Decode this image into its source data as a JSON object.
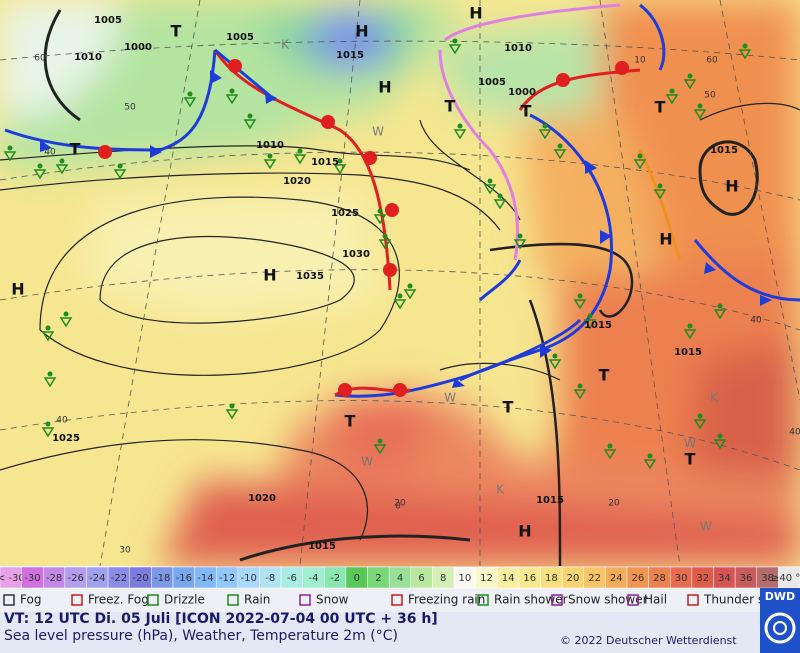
{
  "map": {
    "pressure_labels": [
      "1005",
      "1000",
      "1010",
      "1005",
      "1015",
      "1010",
      "1005",
      "1000",
      "1010",
      "1015",
      "1020",
      "1025",
      "1030",
      "1035",
      "1015",
      "1015",
      "1015",
      "1025",
      "1020",
      "1015",
      "1015"
    ],
    "systems": [
      "H",
      "H",
      "H",
      "H",
      "H",
      "H",
      "H",
      "H",
      "T",
      "T",
      "T",
      "T",
      "T",
      "T",
      "T",
      "T",
      "T"
    ],
    "temperature_labels": [
      "60",
      "50",
      "40",
      "60",
      "50",
      "40",
      "30",
      "20",
      "0",
      "40",
      "20",
      "40",
      "10"
    ],
    "airmass_labels": [
      "K",
      "W",
      "W",
      "W",
      "W",
      "K",
      "K",
      "W"
    ]
  },
  "scale": {
    "labels": [
      "< -30",
      "-30",
      "-28",
      "-26",
      "-24",
      "-22",
      "-20",
      "-18",
      "-16",
      "-14",
      "-12",
      "-10",
      "-8",
      "-6",
      "-4",
      "-2",
      "0",
      "2",
      "4",
      "6",
      "8",
      "10",
      "12",
      "14",
      "16",
      "18",
      "20",
      "22",
      "24",
      "26",
      "28",
      "30",
      "32",
      "34",
      "36",
      "38",
      "≥40 °C"
    ],
    "colors": [
      "#e8a0e8",
      "#d070e0",
      "#c488e8",
      "#b49cf0",
      "#a0a0f0",
      "#8c8ce8",
      "#7c7ce0",
      "#7c98e8",
      "#78a8f0",
      "#80b8f8",
      "#90c8ff",
      "#a8d8ff",
      "#b0e4f4",
      "#a8ece4",
      "#a0f0d0",
      "#88e8b0",
      "#58c858",
      "#78d878",
      "#98e098",
      "#b8e8a0",
      "#d4f0b4",
      "#fafaf0",
      "#f8f8c8",
      "#f8f0a0",
      "#f8e890",
      "#f8e080",
      "#f8d470",
      "#f8c464",
      "#f4ac58",
      "#f09450",
      "#ec8250",
      "#e86c50",
      "#e05c48",
      "#d85454",
      "#c85c5c",
      "#b46c6c",
      "#e8e8e8"
    ]
  },
  "legend": [
    "Fog",
    "Freez. Fog",
    "Drizzle",
    "Rain",
    "Snow",
    "Freezing rain",
    "Rain shower",
    "Snow shower",
    "Hail",
    "Thunder storm"
  ],
  "footer": {
    "valid_time": "VT: 12 UTC Di.  05 Juli [ICON 2022-07-04  00 UTC + 36 h]",
    "description": "Sea level pressure (hPa), Weather, Temperature 2m (°C)",
    "copyright": "© 2022 Deutscher Wetterdienst",
    "logo": "DWD"
  }
}
